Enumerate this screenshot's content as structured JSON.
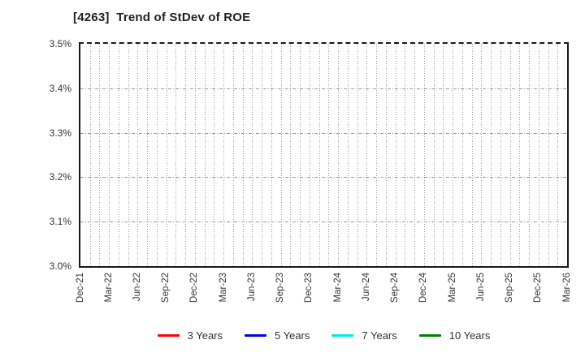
{
  "page": {
    "background": "#ffffff"
  },
  "chart_data": {
    "type": "line",
    "title": "[4263]  Trend of StDev of ROE",
    "xlabel": "",
    "ylabel": "",
    "ylim": [
      3.0,
      3.5
    ],
    "y_tick_step": 0.1,
    "y_tick_labels": [
      "3.0%",
      "3.1%",
      "3.2%",
      "3.3%",
      "3.4%",
      "3.5%"
    ],
    "x_tick_labels": [
      "Dec-21",
      "Mar-22",
      "Jun-22",
      "Sep-22",
      "Dec-22",
      "Mar-23",
      "Jun-23",
      "Sep-23",
      "Dec-23",
      "Mar-24",
      "Jun-24",
      "Sep-24",
      "Dec-24",
      "Mar-25",
      "Jun-25",
      "Sep-25",
      "Dec-25",
      "Mar-26"
    ],
    "x_months_total": 51,
    "x_tick_interval_months": 3,
    "grid": true,
    "grid_color": "#999999",
    "axis_color": "#1a1a1a",
    "legend_position": "bottom",
    "series": [
      {
        "name": "3 Years",
        "color": "#ff0000",
        "values": []
      },
      {
        "name": "5 Years",
        "color": "#0000ff",
        "values": []
      },
      {
        "name": "7 Years",
        "color": "#00e6ee",
        "values": []
      },
      {
        "name": "10 Years",
        "color": "#008000",
        "values": []
      }
    ]
  }
}
